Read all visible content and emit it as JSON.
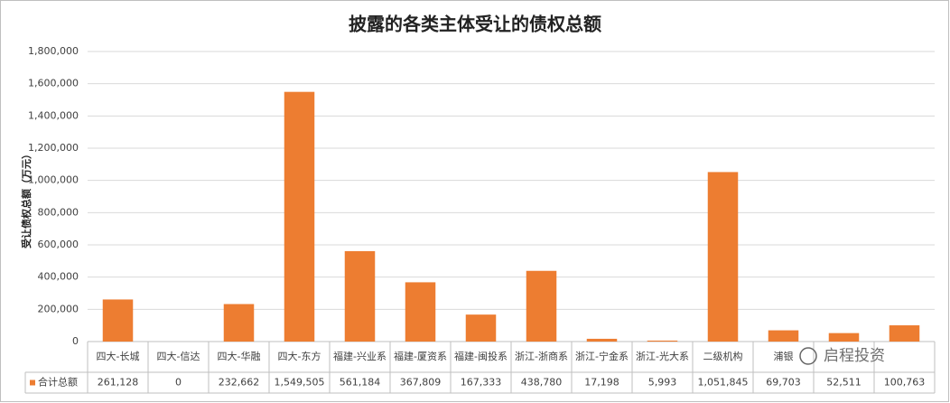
{
  "chart_data": {
    "type": "bar",
    "title": "披露的各类主体受让的债权总额",
    "y_label": "受让债权总额（万元）",
    "categories": [
      "四大-长城",
      "四大-信达",
      "四大-华融",
      "四大-东方",
      "福建-兴业系",
      "福建-厦资系",
      "福建-闽投系",
      "浙江-浙商系",
      "浙江-宁金系",
      "浙江-光大系",
      "二级机构",
      "浦银",
      null,
      null
    ],
    "series": [
      {
        "name": "合计总额",
        "color": "#ed7d31",
        "values": [
          261128,
          0,
          232662,
          1549505,
          561184,
          367809,
          167333,
          438780,
          17198,
          5993,
          1051845,
          69703,
          52511,
          100763
        ],
        "value_labels": [
          "261,128",
          "0",
          "232,662",
          "1,549,505",
          "561,184",
          "367,809",
          "167,333",
          "438,780",
          "17,198",
          "5,993",
          "1,051,845",
          "69,703",
          "52,511",
          "100,763"
        ]
      }
    ],
    "ylim": [
      0,
      1800000
    ],
    "yticks": [
      0,
      {
        "value": 200000,
        "label": "200,000"
      },
      {
        "value": 400000,
        "label": "400,000"
      },
      {
        "value": 600000,
        "label": "600,000"
      },
      {
        "value": 800000,
        "label": "800,000"
      },
      {
        "value": 1000000,
        "label": "1,000,000"
      },
      {
        "value": 1200000,
        "label": "1,200,000"
      },
      {
        "value": 1400000,
        "label": "1,400,000"
      },
      {
        "value": 1600000,
        "label": "1,600,000"
      },
      {
        "value": 1800000,
        "label": "1,800,000"
      }
    ],
    "grid": true,
    "watermark": "启程投资"
  }
}
